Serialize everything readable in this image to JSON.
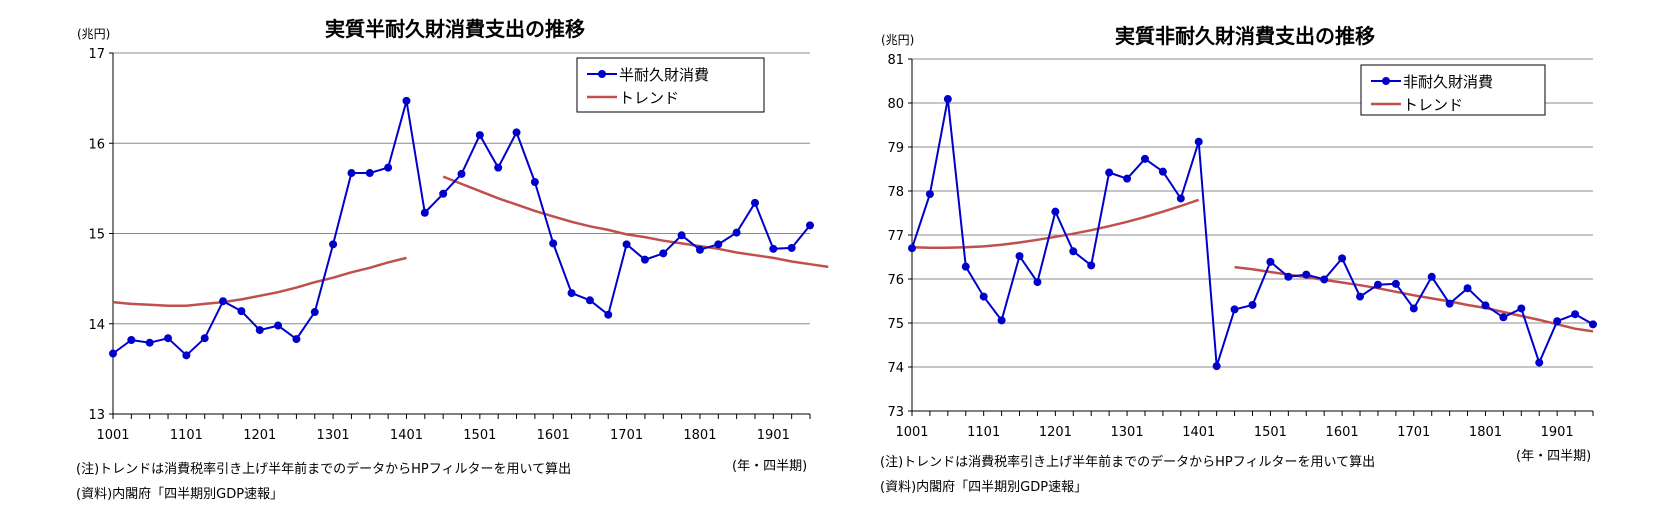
{
  "chart_data": [
    {
      "type": "line",
      "title": "実質半耐久財消費支出の推移",
      "unit_label": "(兆円)",
      "xlabel": "(年・四半期)",
      "ylim": [
        13,
        17
      ],
      "y_ticks": [
        "13",
        "14",
        "15",
        "16",
        "17"
      ],
      "x_tick_labels": [
        "1001",
        "1101",
        "1201",
        "1301",
        "1401",
        "1501",
        "1601",
        "1701",
        "1801",
        "1901"
      ],
      "grid": true,
      "legend_position": "top-right",
      "series": [
        {
          "name": "半耐久財消費",
          "color": "#0000CC",
          "marker": "circle",
          "values": [
            13.67,
            13.82,
            13.79,
            13.84,
            13.65,
            13.84,
            14.25,
            14.14,
            13.93,
            13.98,
            13.83,
            14.13,
            14.88,
            15.67,
            15.67,
            15.73,
            16.47,
            15.23,
            15.44,
            15.66,
            16.09,
            15.73,
            16.12,
            15.57,
            14.89,
            14.34,
            14.26,
            14.1,
            14.88,
            14.71,
            14.78,
            14.98,
            14.82,
            14.88,
            15.01,
            15.34,
            14.83,
            14.84,
            15.09
          ]
        },
        {
          "name": "トレンド",
          "color": "#C0504D",
          "segments": [
            {
              "start_index": 0,
              "values": [
                14.24,
                14.22,
                14.21,
                14.2,
                14.2,
                14.22,
                14.24,
                14.27,
                14.31,
                14.35,
                14.4,
                14.46,
                14.51,
                14.57,
                14.62,
                14.68,
                14.73
              ]
            },
            {
              "start_index": 18,
              "values": [
                15.63,
                15.55,
                15.47,
                15.39,
                15.32,
                15.25,
                15.19,
                15.13,
                15.08,
                15.04,
                14.99,
                14.96,
                14.92,
                14.89,
                14.86,
                14.83,
                14.79,
                14.76,
                14.73,
                14.69,
                14.66,
                14.63
              ]
            }
          ]
        }
      ]
    },
    {
      "type": "line",
      "title": "実質非耐久財消費支出の推移",
      "unit_label": "(兆円)",
      "xlabel": "(年・四半期)",
      "ylim": [
        73,
        81
      ],
      "y_ticks": [
        "73",
        "74",
        "75",
        "76",
        "77",
        "78",
        "79",
        "80",
        "81"
      ],
      "x_tick_labels": [
        "1001",
        "1101",
        "1201",
        "1301",
        "1401",
        "1501",
        "1601",
        "1701",
        "1801",
        "1901"
      ],
      "grid": true,
      "legend_position": "top-right",
      "series": [
        {
          "name": "非耐久財消費",
          "color": "#0000CC",
          "marker": "circle",
          "values": [
            76.7,
            77.93,
            80.09,
            76.28,
            75.6,
            75.06,
            76.52,
            75.93,
            77.53,
            76.63,
            76.31,
            78.42,
            78.28,
            78.73,
            78.44,
            77.83,
            79.12,
            74.02,
            75.31,
            75.41,
            76.39,
            76.05,
            76.1,
            75.99,
            76.47,
            75.6,
            75.87,
            75.89,
            75.33,
            76.05,
            75.44,
            75.79,
            75.4,
            75.13,
            75.33,
            74.1,
            75.04,
            75.2,
            74.97
          ]
        },
        {
          "name": "トレンド",
          "color": "#C0504D",
          "segments": [
            {
              "start_index": 0,
              "values": [
                76.72,
                76.71,
                76.71,
                76.72,
                76.74,
                76.78,
                76.83,
                76.89,
                76.96,
                77.03,
                77.11,
                77.2,
                77.3,
                77.41,
                77.53,
                77.66,
                77.8
              ]
            },
            {
              "start_index": 18,
              "values": [
                76.27,
                76.22,
                76.16,
                76.1,
                76.04,
                75.98,
                75.92,
                75.86,
                75.79,
                75.71,
                75.63,
                75.56,
                75.49,
                75.41,
                75.34,
                75.25,
                75.16,
                75.07,
                74.97,
                74.87,
                74.81
              ]
            }
          ]
        }
      ]
    }
  ],
  "notes": [
    {
      "note": "(注)トレンドは消費税率引き上げ半年前までのデータからHPフィルターを用いて算出",
      "source": "(資料)内閣府「四半期別GDP速報」"
    },
    {
      "note": "(注)トレンドは消費税率引き上げ半年前までのデータからHPフィルターを用いて算出",
      "source": "(資料)内閣府「四半期別GDP速報」"
    }
  ]
}
